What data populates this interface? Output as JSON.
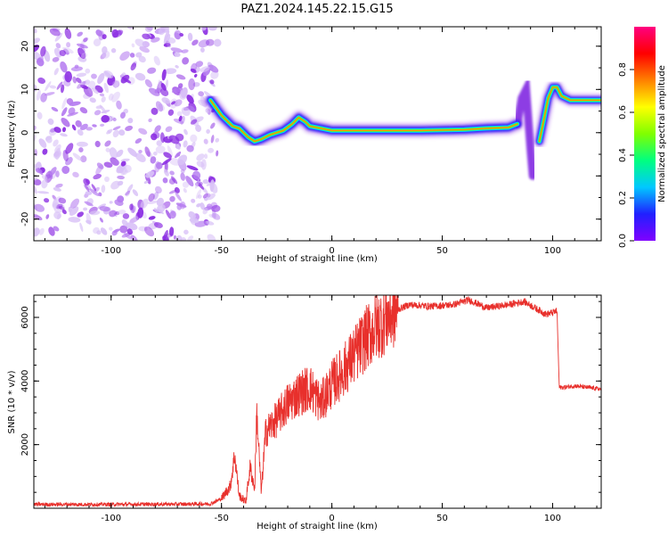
{
  "title": "PAZ1.2024.145.22.15.G15",
  "chart_data": [
    {
      "type": "heatmap",
      "xlabel": "Height of straight line (km)",
      "ylabel": "Frequency (Hz)",
      "xlim": [
        -135,
        122
      ],
      "ylim": [
        -25,
        24.5
      ],
      "x_ticks": [
        -100,
        -50,
        0,
        50,
        100
      ],
      "y_ticks": [
        20,
        10,
        0,
        -10,
        -20
      ],
      "colorbar": {
        "label": "Normalized spectral amplitude",
        "range": [
          0,
          1
        ],
        "ticks": [
          0.0,
          0.2,
          0.4,
          0.6,
          0.8
        ],
        "colors": [
          "#8000ff",
          "#2020ff",
          "#00c8ff",
          "#00ff80",
          "#80ff00",
          "#ffff00",
          "#ff8000",
          "#ff0000",
          "#ff0080"
        ]
      },
      "noise_region_x": [
        -135,
        -55
      ],
      "ridge": [
        {
          "x": -55,
          "y": 7.5
        },
        {
          "x": -50,
          "y": 4
        },
        {
          "x": -45,
          "y": 1.5
        },
        {
          "x": -42,
          "y": 1
        },
        {
          "x": -38,
          "y": -1
        },
        {
          "x": -35,
          "y": -2
        },
        {
          "x": -32,
          "y": -1.5
        },
        {
          "x": -28,
          "y": -0.5
        },
        {
          "x": -22,
          "y": 0.5
        },
        {
          "x": -18,
          "y": 2
        },
        {
          "x": -15,
          "y": 3.5
        },
        {
          "x": -12,
          "y": 2.5
        },
        {
          "x": -10,
          "y": 1.5
        },
        {
          "x": -5,
          "y": 1
        },
        {
          "x": 0,
          "y": 0.5
        },
        {
          "x": 5,
          "y": 0.5
        },
        {
          "x": 20,
          "y": 0.5
        },
        {
          "x": 40,
          "y": 0.5
        },
        {
          "x": 60,
          "y": 0.7
        },
        {
          "x": 70,
          "y": 1
        },
        {
          "x": 80,
          "y": 1.2
        },
        {
          "x": 84,
          "y": 2
        }
      ],
      "ridge2": [
        {
          "x": 94,
          "y": -2
        },
        {
          "x": 96,
          "y": 3
        },
        {
          "x": 98,
          "y": 8
        },
        {
          "x": 100,
          "y": 10.5
        },
        {
          "x": 102,
          "y": 10.5
        },
        {
          "x": 104,
          "y": 8.5
        },
        {
          "x": 108,
          "y": 7.5
        },
        {
          "x": 122,
          "y": 7.5
        }
      ],
      "spur": [
        {
          "x": 84,
          "y": 2
        },
        {
          "x": 86,
          "y": 8
        },
        {
          "x": 88,
          "y": 10
        },
        {
          "x": 89,
          "y": 3
        },
        {
          "x": 90,
          "y": -4
        },
        {
          "x": 91,
          "y": -10
        }
      ]
    },
    {
      "type": "line",
      "xlabel": "Height of straight line (km)",
      "ylabel": "SNR (10 * v/v)",
      "xlim": [
        -135,
        122
      ],
      "ylim": [
        0,
        6700
      ],
      "x_ticks": [
        -100,
        -50,
        0,
        50,
        100
      ],
      "y_ticks": [
        2000,
        4000,
        6000
      ],
      "color": "#e8302c",
      "points": [
        {
          "x": -135,
          "y": 120
        },
        {
          "x": -100,
          "y": 120
        },
        {
          "x": -70,
          "y": 130
        },
        {
          "x": -55,
          "y": 140
        },
        {
          "x": -50,
          "y": 300
        },
        {
          "x": -46,
          "y": 700
        },
        {
          "x": -44,
          "y": 1700
        },
        {
          "x": -42,
          "y": 400
        },
        {
          "x": -39,
          "y": 200
        },
        {
          "x": -37,
          "y": 1300
        },
        {
          "x": -35,
          "y": 600
        },
        {
          "x": -34,
          "y": 3000
        },
        {
          "x": -32,
          "y": 500
        },
        {
          "x": -30,
          "y": 2400
        },
        {
          "x": -25,
          "y": 2800
        },
        {
          "x": -20,
          "y": 3300
        },
        {
          "x": -15,
          "y": 3600
        },
        {
          "x": -10,
          "y": 3800
        },
        {
          "x": -5,
          "y": 3300
        },
        {
          "x": 0,
          "y": 3900
        },
        {
          "x": 5,
          "y": 4300
        },
        {
          "x": 10,
          "y": 4800
        },
        {
          "x": 15,
          "y": 5300
        },
        {
          "x": 20,
          "y": 5700
        },
        {
          "x": 25,
          "y": 6000
        },
        {
          "x": 30,
          "y": 6250
        },
        {
          "x": 35,
          "y": 6400
        },
        {
          "x": 45,
          "y": 6350
        },
        {
          "x": 55,
          "y": 6400
        },
        {
          "x": 62,
          "y": 6550
        },
        {
          "x": 70,
          "y": 6300
        },
        {
          "x": 80,
          "y": 6400
        },
        {
          "x": 87,
          "y": 6500
        },
        {
          "x": 92,
          "y": 6300
        },
        {
          "x": 97,
          "y": 6100
        },
        {
          "x": 100,
          "y": 6150
        },
        {
          "x": 102,
          "y": 6200
        },
        {
          "x": 103,
          "y": 3800
        },
        {
          "x": 105,
          "y": 3800
        },
        {
          "x": 110,
          "y": 3850
        },
        {
          "x": 115,
          "y": 3800
        },
        {
          "x": 122,
          "y": 3750
        }
      ]
    }
  ]
}
